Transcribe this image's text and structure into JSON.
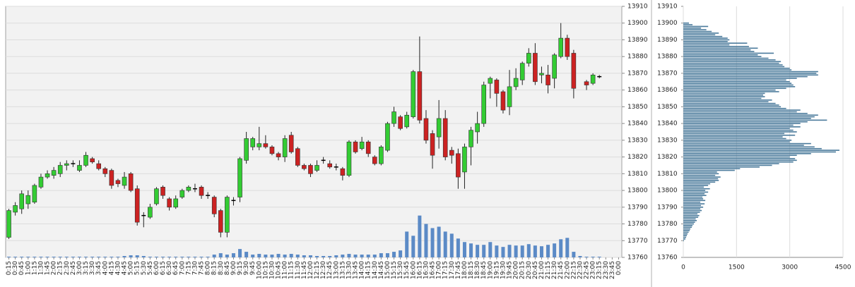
{
  "chart_data": [
    {
      "type": "candlestick",
      "x": [
        "0:15",
        "0:30",
        "0:45",
        "1:00",
        "1:15",
        "1:30",
        "1:45",
        "2:00",
        "2:15",
        "2:30",
        "2:45",
        "3:00",
        "3:15",
        "3:30",
        "3:45",
        "4:00",
        "4:15",
        "4:30",
        "4:45",
        "5:00",
        "5:15",
        "5:30",
        "5:45",
        "6:00",
        "6:15",
        "6:30",
        "6:45",
        "7:00",
        "7:15",
        "7:30",
        "7:45",
        "8:00",
        "8:15",
        "8:30",
        "8:45",
        "9:00",
        "9:15",
        "9:30",
        "9:45",
        "10:00",
        "10:15",
        "10:30",
        "10:45",
        "11:00",
        "11:15",
        "11:30",
        "11:45",
        "12:00",
        "12:15",
        "12:30",
        "12:45",
        "13:00",
        "13:15",
        "13:30",
        "13:45",
        "14:00",
        "14:15",
        "14:30",
        "14:45",
        "15:00",
        "15:15",
        "15:30",
        "15:45",
        "16:00",
        "16:15",
        "16:30",
        "16:45",
        "17:00",
        "17:15",
        "17:30",
        "17:45",
        "18:00",
        "18:15",
        "18:30",
        "18:45",
        "19:00",
        "19:15",
        "19:30",
        "19:45",
        "20:00",
        "20:15",
        "20:30",
        "20:45",
        "21:00",
        "21:15",
        "21:30",
        "21:45",
        "22:00",
        "22:15",
        "22:30",
        "22:45",
        "23:00",
        "23:15",
        "23:30",
        "23:45",
        "0:00"
      ],
      "open": [
        13772,
        13787,
        13789,
        13792,
        13793,
        13802,
        13808,
        13809,
        13810,
        13815,
        13816,
        13812,
        13815,
        13819,
        13816,
        13813,
        13812,
        13806,
        13803,
        13810,
        13801,
        13785,
        13784,
        13792,
        13802,
        13795,
        13790,
        13796,
        13800,
        13801,
        13802,
        13797,
        13796,
        13788,
        13775,
        13794,
        13796,
        13818,
        13826,
        13826,
        13828,
        13826,
        13822,
        13820,
        13833,
        13825,
        13815,
        13815,
        13812,
        13818,
        13816,
        13814,
        13813,
        13809,
        13829,
        13825,
        13829,
        13820,
        13816,
        13824,
        13840,
        13844,
        13838,
        13844,
        13871,
        13843,
        13834,
        13832,
        13843,
        13824,
        13822,
        13811,
        13826,
        13835,
        13840,
        13864,
        13866,
        13859,
        13850,
        13862,
        13866,
        13876,
        13882,
        13869,
        13869,
        13867,
        13880,
        13891,
        13882,
        null,
        13865,
        13864,
        13868,
        null,
        null,
        null
      ],
      "high": [
        13789,
        13793,
        13800,
        13800,
        13804,
        13810,
        13812,
        13814,
        13817,
        13818,
        13818,
        13818,
        13823,
        13820,
        13818,
        13814,
        13813,
        13807,
        13811,
        13811,
        13803,
        13787,
        13792,
        13802,
        13803,
        13796,
        13797,
        13801,
        13803,
        13804,
        13803,
        13799,
        13797,
        13789,
        13797,
        13796,
        13820,
        13835,
        13832,
        13838,
        13833,
        13827,
        13823,
        13833,
        13835,
        13826,
        13816,
        13816,
        13818,
        13820,
        13818,
        13816,
        13814,
        13830,
        13830,
        13832,
        13830,
        13821,
        13827,
        13841,
        13850,
        13845,
        13847,
        13872,
        13892,
        13848,
        13836,
        13854,
        13848,
        13826,
        13825,
        13828,
        13838,
        13847,
        13865,
        13868,
        13867,
        13860,
        13872,
        13873,
        13877,
        13885,
        13888,
        13874,
        13875,
        13882,
        13900,
        13893,
        13884,
        null,
        13866,
        13870,
        13869,
        null,
        null,
        null
      ],
      "low": [
        13771,
        13785,
        13786,
        13789,
        13792,
        13801,
        13807,
        13807,
        13808,
        13812,
        13814,
        13811,
        13814,
        13816,
        13812,
        13808,
        13801,
        13802,
        13801,
        13799,
        13779,
        13778,
        13783,
        13791,
        13795,
        13788,
        13789,
        13795,
        13799,
        13799,
        13795,
        13795,
        13784,
        13772,
        13772,
        13791,
        13793,
        13816,
        13824,
        13824,
        13825,
        13821,
        13818,
        13817,
        13822,
        13814,
        13812,
        13808,
        13811,
        13816,
        13813,
        13812,
        13806,
        13808,
        13822,
        13824,
        13820,
        13815,
        13815,
        13823,
        13838,
        13836,
        13837,
        13843,
        13840,
        13828,
        13813,
        13825,
        13818,
        13816,
        13801,
        13801,
        13815,
        13828,
        13838,
        13855,
        13850,
        13846,
        13845,
        13860,
        13863,
        13874,
        13863,
        13864,
        13858,
        13861,
        13879,
        13878,
        13855,
        null,
        13860,
        13863,
        13867,
        null,
        null,
        null
      ],
      "close": [
        13788,
        13791,
        13798,
        13797,
        13803,
        13808,
        13810,
        13812,
        13815,
        13816,
        13816,
        13815,
        13821,
        13817,
        13813,
        13810,
        13803,
        13804,
        13808,
        13800,
        13781,
        13785,
        13790,
        13801,
        13797,
        13790,
        13795,
        13800,
        13802,
        13801,
        13797,
        13797,
        13786,
        13775,
        13796,
        13794,
        13819,
        13831,
        13831,
        13828,
        13826,
        13822,
        13820,
        13831,
        13823,
        13815,
        13813,
        13810,
        13815,
        13818,
        13814,
        13814,
        13809,
        13829,
        13823,
        13829,
        13822,
        13816,
        13826,
        13840,
        13847,
        13837,
        13845,
        13871,
        13842,
        13830,
        13821,
        13843,
        13820,
        13821,
        13808,
        13826,
        13836,
        13840,
        13863,
        13867,
        13858,
        13848,
        13862,
        13867,
        13876,
        13882,
        13865,
        13870,
        13863,
        13881,
        13891,
        13880,
        13861,
        null,
        13863,
        13869,
        13868,
        null,
        null,
        null
      ],
      "volume": [
        1,
        1,
        1,
        1,
        1,
        1,
        1,
        1,
        1,
        1,
        1,
        1,
        1,
        1,
        1,
        1,
        1,
        1,
        2,
        3,
        3,
        2,
        1,
        1,
        1,
        1,
        1,
        1,
        1,
        1,
        1,
        1,
        4,
        6,
        4,
        6,
        12,
        8,
        4,
        5,
        4,
        4,
        5,
        4,
        5,
        4,
        3,
        3,
        2,
        2,
        2,
        3,
        4,
        5,
        4,
        4,
        4,
        4,
        6,
        6,
        8,
        10,
        37,
        31,
        60,
        48,
        42,
        44,
        37,
        34,
        27,
        22,
        20,
        18,
        18,
        22,
        17,
        15,
        18,
        17,
        17,
        19,
        17,
        16,
        18,
        20,
        26,
        28,
        8,
        2,
        1,
        1,
        1,
        0,
        0,
        0
      ],
      "volume_lim": [
        0,
        360
      ],
      "ylim": [
        13760,
        13910
      ],
      "yticks": [
        13760,
        13770,
        13780,
        13790,
        13800,
        13810,
        13820,
        13830,
        13840,
        13850,
        13860,
        13870,
        13880,
        13890,
        13900,
        13910
      ],
      "grid": true,
      "up_color": "#33cc33",
      "down_color": "#cc2222",
      "flat_color": "#000000",
      "volume_color": "#5b8ac6"
    },
    {
      "type": "barh",
      "y": [
        13770,
        13771,
        13772,
        13773,
        13774,
        13775,
        13776,
        13777,
        13778,
        13779,
        13780,
        13781,
        13782,
        13783,
        13784,
        13785,
        13786,
        13787,
        13788,
        13789,
        13790,
        13791,
        13792,
        13793,
        13794,
        13795,
        13796,
        13797,
        13798,
        13799,
        13800,
        13801,
        13802,
        13803,
        13804,
        13805,
        13806,
        13807,
        13808,
        13809,
        13810,
        13811,
        13812,
        13813,
        13814,
        13815,
        13816,
        13817,
        13818,
        13819,
        13820,
        13821,
        13822,
        13823,
        13824,
        13825,
        13826,
        13827,
        13828,
        13829,
        13830,
        13831,
        13832,
        13833,
        13834,
        13835,
        13836,
        13837,
        13838,
        13839,
        13840,
        13841,
        13842,
        13843,
        13844,
        13845,
        13846,
        13847,
        13848,
        13849,
        13850,
        13851,
        13852,
        13853,
        13854,
        13855,
        13856,
        13857,
        13858,
        13859,
        13860,
        13861,
        13862,
        13863,
        13864,
        13865,
        13866,
        13867,
        13868,
        13869,
        13870,
        13871,
        13872,
        13873,
        13874,
        13875,
        13876,
        13877,
        13878,
        13879,
        13880,
        13881,
        13882,
        13883,
        13884,
        13885,
        13886,
        13887,
        13888,
        13889,
        13890,
        13891,
        13892,
        13893,
        13894,
        13895,
        13896,
        13897,
        13898,
        13899,
        13900
      ],
      "values": [
        20,
        60,
        80,
        100,
        120,
        150,
        180,
        200,
        240,
        260,
        300,
        330,
        380,
        350,
        420,
        450,
        400,
        470,
        520,
        480,
        560,
        500,
        600,
        480,
        620,
        560,
        540,
        650,
        600,
        700,
        620,
        750,
        580,
        700,
        760,
        900,
        1000,
        980,
        1050,
        900,
        1000,
        950,
        1450,
        1600,
        2150,
        2500,
        2700,
        3100,
        3200,
        3150,
        3000,
        3200,
        3600,
        4300,
        4400,
        3900,
        3700,
        3400,
        3600,
        3000,
        3050,
        2900,
        2800,
        3150,
        2850,
        3200,
        3100,
        3000,
        3300,
        3100,
        3300,
        3500,
        4050,
        3600,
        3700,
        3800,
        3500,
        3200,
        3300,
        2900,
        2750,
        2700,
        2600,
        2400,
        2500,
        2200,
        2300,
        2250,
        2300,
        2700,
        2600,
        2900,
        3150,
        3100,
        3050,
        3000,
        2900,
        3200,
        3500,
        3800,
        3750,
        3800,
        3050,
        3000,
        2850,
        2800,
        2700,
        2750,
        2600,
        2400,
        2200,
        2100,
        2550,
        2000,
        1900,
        2100,
        1850,
        1300,
        1800,
        1250,
        1300,
        1250,
        1100,
        900,
        1000,
        800,
        650,
        500,
        700,
        260,
        160
      ],
      "xlim": [
        0,
        4500
      ],
      "xticks": [
        0,
        1500,
        3000,
        4500
      ],
      "ylim": [
        13760,
        13910
      ],
      "yticks": [
        13760,
        13770,
        13780,
        13790,
        13800,
        13810,
        13820,
        13830,
        13840,
        13850,
        13860,
        13870,
        13880,
        13890,
        13900,
        13910
      ],
      "grid": true,
      "color": "#4a7a9b"
    }
  ]
}
